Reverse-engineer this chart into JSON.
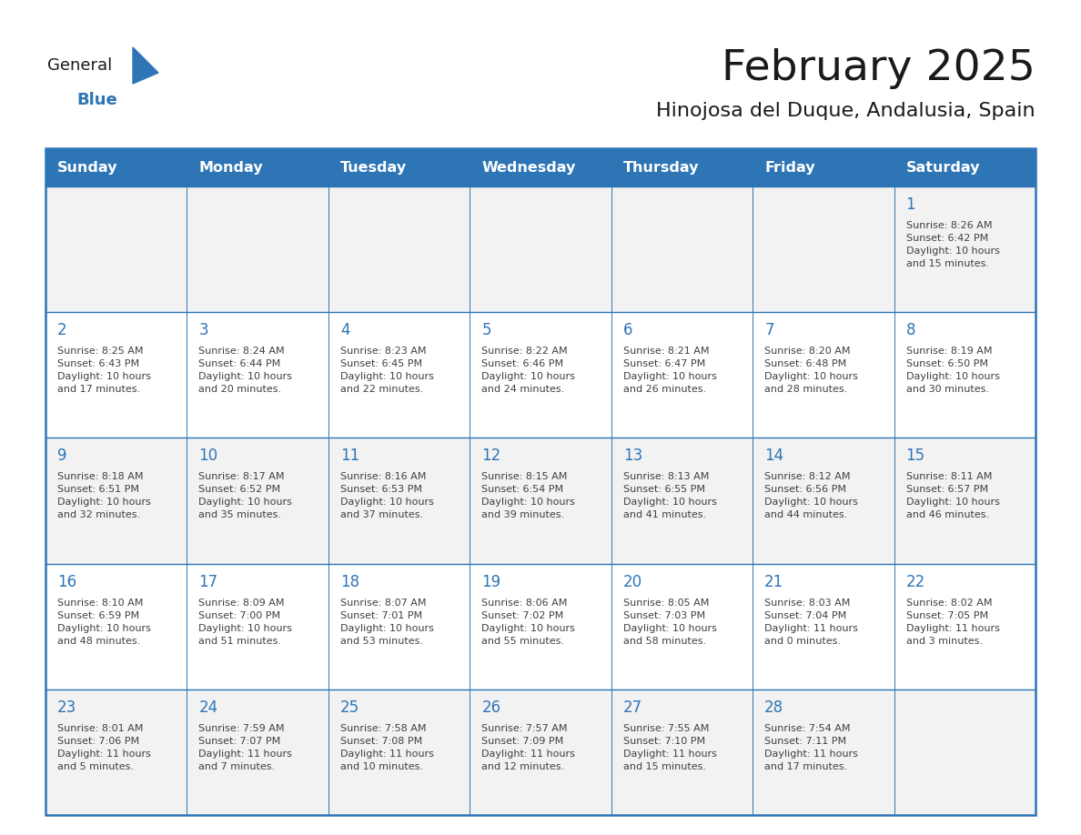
{
  "title": "February 2025",
  "subtitle": "Hinojosa del Duque, Andalusia, Spain",
  "header_color": "#2E75B6",
  "header_text_color": "#FFFFFF",
  "cell_bg_even": "#F2F2F2",
  "cell_bg_odd": "#FFFFFF",
  "border_color": "#2E75B6",
  "day_number_color": "#2E75B6",
  "cell_text_color": "#404040",
  "days_of_week": [
    "Sunday",
    "Monday",
    "Tuesday",
    "Wednesday",
    "Thursday",
    "Friday",
    "Saturday"
  ],
  "weeks": [
    [
      {
        "day": "",
        "info": ""
      },
      {
        "day": "",
        "info": ""
      },
      {
        "day": "",
        "info": ""
      },
      {
        "day": "",
        "info": ""
      },
      {
        "day": "",
        "info": ""
      },
      {
        "day": "",
        "info": ""
      },
      {
        "day": "1",
        "info": "Sunrise: 8:26 AM\nSunset: 6:42 PM\nDaylight: 10 hours\nand 15 minutes."
      }
    ],
    [
      {
        "day": "2",
        "info": "Sunrise: 8:25 AM\nSunset: 6:43 PM\nDaylight: 10 hours\nand 17 minutes."
      },
      {
        "day": "3",
        "info": "Sunrise: 8:24 AM\nSunset: 6:44 PM\nDaylight: 10 hours\nand 20 minutes."
      },
      {
        "day": "4",
        "info": "Sunrise: 8:23 AM\nSunset: 6:45 PM\nDaylight: 10 hours\nand 22 minutes."
      },
      {
        "day": "5",
        "info": "Sunrise: 8:22 AM\nSunset: 6:46 PM\nDaylight: 10 hours\nand 24 minutes."
      },
      {
        "day": "6",
        "info": "Sunrise: 8:21 AM\nSunset: 6:47 PM\nDaylight: 10 hours\nand 26 minutes."
      },
      {
        "day": "7",
        "info": "Sunrise: 8:20 AM\nSunset: 6:48 PM\nDaylight: 10 hours\nand 28 minutes."
      },
      {
        "day": "8",
        "info": "Sunrise: 8:19 AM\nSunset: 6:50 PM\nDaylight: 10 hours\nand 30 minutes."
      }
    ],
    [
      {
        "day": "9",
        "info": "Sunrise: 8:18 AM\nSunset: 6:51 PM\nDaylight: 10 hours\nand 32 minutes."
      },
      {
        "day": "10",
        "info": "Sunrise: 8:17 AM\nSunset: 6:52 PM\nDaylight: 10 hours\nand 35 minutes."
      },
      {
        "day": "11",
        "info": "Sunrise: 8:16 AM\nSunset: 6:53 PM\nDaylight: 10 hours\nand 37 minutes."
      },
      {
        "day": "12",
        "info": "Sunrise: 8:15 AM\nSunset: 6:54 PM\nDaylight: 10 hours\nand 39 minutes."
      },
      {
        "day": "13",
        "info": "Sunrise: 8:13 AM\nSunset: 6:55 PM\nDaylight: 10 hours\nand 41 minutes."
      },
      {
        "day": "14",
        "info": "Sunrise: 8:12 AM\nSunset: 6:56 PM\nDaylight: 10 hours\nand 44 minutes."
      },
      {
        "day": "15",
        "info": "Sunrise: 8:11 AM\nSunset: 6:57 PM\nDaylight: 10 hours\nand 46 minutes."
      }
    ],
    [
      {
        "day": "16",
        "info": "Sunrise: 8:10 AM\nSunset: 6:59 PM\nDaylight: 10 hours\nand 48 minutes."
      },
      {
        "day": "17",
        "info": "Sunrise: 8:09 AM\nSunset: 7:00 PM\nDaylight: 10 hours\nand 51 minutes."
      },
      {
        "day": "18",
        "info": "Sunrise: 8:07 AM\nSunset: 7:01 PM\nDaylight: 10 hours\nand 53 minutes."
      },
      {
        "day": "19",
        "info": "Sunrise: 8:06 AM\nSunset: 7:02 PM\nDaylight: 10 hours\nand 55 minutes."
      },
      {
        "day": "20",
        "info": "Sunrise: 8:05 AM\nSunset: 7:03 PM\nDaylight: 10 hours\nand 58 minutes."
      },
      {
        "day": "21",
        "info": "Sunrise: 8:03 AM\nSunset: 7:04 PM\nDaylight: 11 hours\nand 0 minutes."
      },
      {
        "day": "22",
        "info": "Sunrise: 8:02 AM\nSunset: 7:05 PM\nDaylight: 11 hours\nand 3 minutes."
      }
    ],
    [
      {
        "day": "23",
        "info": "Sunrise: 8:01 AM\nSunset: 7:06 PM\nDaylight: 11 hours\nand 5 minutes."
      },
      {
        "day": "24",
        "info": "Sunrise: 7:59 AM\nSunset: 7:07 PM\nDaylight: 11 hours\nand 7 minutes."
      },
      {
        "day": "25",
        "info": "Sunrise: 7:58 AM\nSunset: 7:08 PM\nDaylight: 11 hours\nand 10 minutes."
      },
      {
        "day": "26",
        "info": "Sunrise: 7:57 AM\nSunset: 7:09 PM\nDaylight: 11 hours\nand 12 minutes."
      },
      {
        "day": "27",
        "info": "Sunrise: 7:55 AM\nSunset: 7:10 PM\nDaylight: 11 hours\nand 15 minutes."
      },
      {
        "day": "28",
        "info": "Sunrise: 7:54 AM\nSunset: 7:11 PM\nDaylight: 11 hours\nand 17 minutes."
      },
      {
        "day": "",
        "info": ""
      }
    ]
  ],
  "logo_color_general": "#1a1a1a",
  "logo_color_blue": "#2E75B6",
  "logo_triangle_color": "#2E75B6"
}
